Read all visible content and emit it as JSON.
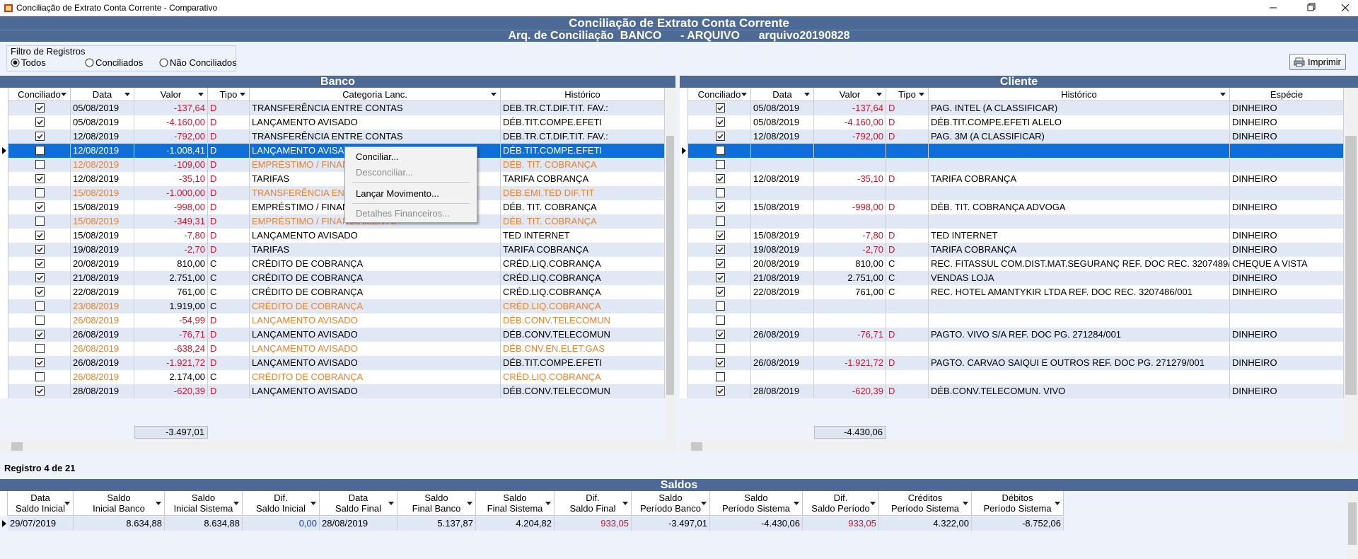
{
  "window": {
    "title": "Conciliação de Extrato Conta Corrente - Comparativo"
  },
  "header": {
    "title": "Conciliação de Extrato Conta Corrente",
    "subtitle": "Arq. de Conciliação  BANCO      - ARQUIVO      arquivo20190828"
  },
  "filter": {
    "label": "Filtro de Registros",
    "options": [
      "Todos",
      "Conciliados",
      "Não Conciliados"
    ],
    "selected": 0
  },
  "print_button": "Imprimir",
  "selected_row": 3,
  "banco": {
    "title": "Banco",
    "columns": [
      "Conciliado",
      "Data",
      "Valor",
      "Tipo",
      "Categoria Lanc.",
      "Histórico"
    ],
    "rows": [
      {
        "checked": true,
        "cells": [
          "05/08/2019",
          "-137,64",
          "D",
          "TRANSFERÊNCIA ENTRE CONTAS",
          "DEB.TR.CT.DIF.TIT. FAV.:"
        ]
      },
      {
        "checked": true,
        "cells": [
          "05/08/2019",
          "-4.160,00",
          "D",
          "LANÇAMENTO AVISADO",
          "DÉB.TIT.COMPE.EFETI"
        ]
      },
      {
        "checked": true,
        "cells": [
          "12/08/2019",
          "-792,00",
          "D",
          "TRANSFERÊNCIA ENTRE CONTAS",
          "DEB.TR.CT.DIF.TIT. FAV.:"
        ]
      },
      {
        "checked": false,
        "cells": [
          "12/08/2019",
          "-1.008,41",
          "D",
          "LANÇAMENTO AVISADO",
          "DÉB.TIT.COMPE.EFETI"
        ]
      },
      {
        "checked": false,
        "cells": [
          "12/08/2019",
          "-109,00",
          "D",
          "EMPRÉSTIMO / FINANCIAMENTO",
          "DÉB. TIT. COBRANÇA"
        ]
      },
      {
        "checked": true,
        "cells": [
          "12/08/2019",
          "-35,10",
          "D",
          "TARIFAS",
          "TARIFA COBRANÇA"
        ]
      },
      {
        "checked": false,
        "cells": [
          "15/08/2019",
          "-1.000,00",
          "D",
          "TRANSFERÊNCIA ENTRE CONTAS",
          "DEB.EMI.TED DIF.TIT"
        ]
      },
      {
        "checked": true,
        "cells": [
          "15/08/2019",
          "-998,00",
          "D",
          "EMPRÉSTIMO / FINANCIAMENTO",
          "DÉB. TIT. COBRANÇA"
        ]
      },
      {
        "checked": false,
        "cells": [
          "15/08/2019",
          "-349,31",
          "D",
          "EMPRÉSTIMO / FINANCIAMENTO",
          "DÉB. TIT. COBRANÇA"
        ]
      },
      {
        "checked": true,
        "cells": [
          "15/08/2019",
          "-7,80",
          "D",
          "LANÇAMENTO AVISADO",
          "TED INTERNET"
        ]
      },
      {
        "checked": true,
        "cells": [
          "19/08/2019",
          "-2,70",
          "D",
          "TARIFAS",
          "TARIFA COBRANÇA"
        ]
      },
      {
        "checked": true,
        "cells": [
          "20/08/2019",
          "810,00",
          "C",
          "CRÉDITO DE COBRANÇA",
          "CRÉD.LIQ.COBRANÇA"
        ]
      },
      {
        "checked": true,
        "cells": [
          "21/08/2019",
          "2.751,00",
          "C",
          "CRÉDITO DE COBRANÇA",
          "CRÉD.LIQ.COBRANÇA"
        ]
      },
      {
        "checked": true,
        "cells": [
          "22/08/2019",
          "761,00",
          "C",
          "CRÉDITO DE COBRANÇA",
          "CRÉD.LIQ.COBRANÇA"
        ]
      },
      {
        "checked": false,
        "cells": [
          "23/08/2019",
          "1.919,00",
          "C",
          "CRÉDITO DE COBRANÇA",
          "CRÉD.LIQ.COBRANÇA"
        ]
      },
      {
        "checked": false,
        "cells": [
          "26/08/2019",
          "-54,99",
          "D",
          "LANÇAMENTO AVISADO",
          "DÉB.CONV.TELECOMUN"
        ]
      },
      {
        "checked": true,
        "cells": [
          "26/08/2019",
          "-76,71",
          "D",
          "LANÇAMENTO AVISADO",
          "DÉB.CONV.TELECOMUN"
        ]
      },
      {
        "checked": false,
        "cells": [
          "26/08/2019",
          "-638,24",
          "D",
          "LANÇAMENTO AVISADO",
          "DÉB.CNV.EN.ELET.GAS"
        ]
      },
      {
        "checked": true,
        "cells": [
          "26/08/2019",
          "-1.921,72",
          "D",
          "LANÇAMENTO AVISADO",
          "DÉB.TIT.COMPE.EFETI"
        ]
      },
      {
        "checked": false,
        "cells": [
          "26/08/2019",
          "2.174,00",
          "C",
          "CRÉDITO DE COBRANÇA",
          "CRÉD.LIQ.COBRANÇA"
        ]
      },
      {
        "checked": true,
        "cells": [
          "28/08/2019",
          "-620,39",
          "D",
          "LANÇAMENTO AVISADO",
          "DÉB.CONV.TELECOMUN"
        ]
      }
    ],
    "total": "-3.497,01"
  },
  "cliente": {
    "title": "Cliente",
    "columns": [
      "Conciliado",
      "Data",
      "Valor",
      "Tipo",
      "Histórico",
      "Espécie"
    ],
    "rows": [
      {
        "checked": true,
        "cells": [
          "05/08/2019",
          "-137,64",
          "D",
          "PAG. INTEL (A CLASSIFICAR)",
          "DINHEIRO"
        ]
      },
      {
        "checked": true,
        "cells": [
          "05/08/2019",
          "-4.160,00",
          "D",
          "DÉB.TIT.COMPE.EFETI ALELO",
          "DINHEIRO"
        ]
      },
      {
        "checked": true,
        "cells": [
          "12/08/2019",
          "-792,00",
          "D",
          "PAG. 3M (A CLASSIFICAR)",
          "DINHEIRO"
        ]
      },
      {
        "checked": false
      },
      {
        "checked": false
      },
      {
        "checked": true,
        "cells": [
          "12/08/2019",
          "-35,10",
          "D",
          "TARIFA COBRANÇA",
          "DINHEIRO"
        ]
      },
      {
        "checked": false
      },
      {
        "checked": true,
        "cells": [
          "15/08/2019",
          "-998,00",
          "D",
          "DÉB. TIT. COBRANÇA ADVOGA",
          "DINHEIRO"
        ]
      },
      {
        "checked": false
      },
      {
        "checked": true,
        "cells": [
          "15/08/2019",
          "-7,80",
          "D",
          "TED INTERNET",
          "DINHEIRO"
        ]
      },
      {
        "checked": true,
        "cells": [
          "19/08/2019",
          "-2,70",
          "D",
          "TARIFA COBRANÇA",
          "DINHEIRO"
        ]
      },
      {
        "checked": true,
        "cells": [
          "20/08/2019",
          "810,00",
          "C",
          "REC. FITASSUL COM.DIST.MAT.SEGURANÇ REF. DOC REC. 3207489/",
          "CHEQUE A VISTA"
        ]
      },
      {
        "checked": true,
        "cells": [
          "21/08/2019",
          "2.751,00",
          "C",
          "VENDAS LOJA",
          "DINHEIRO"
        ]
      },
      {
        "checked": true,
        "cells": [
          "22/08/2019",
          "761,00",
          "C",
          "REC. HOTEL AMANTYKIR LTDA REF. DOC REC. 3207486/001",
          "DINHEIRO"
        ]
      },
      {
        "checked": false
      },
      {
        "checked": false
      },
      {
        "checked": true,
        "cells": [
          "26/08/2019",
          "-76,71",
          "D",
          "PAGTO. VIVO S/A REF. DOC PG. 271284/001",
          "DINHEIRO"
        ]
      },
      {
        "checked": false
      },
      {
        "checked": true,
        "cells": [
          "26/08/2019",
          "-1.921,72",
          "D",
          "PAGTO. CARVAO SAIQUI E OUTROS REF. DOC PG. 271279/001",
          "DINHEIRO"
        ]
      },
      {
        "checked": false
      },
      {
        "checked": true,
        "cells": [
          "28/08/2019",
          "-620,39",
          "D",
          "DÉB.CONV.TELECOMUN. VIVO",
          "DINHEIRO"
        ]
      }
    ],
    "total": "-4.430,06"
  },
  "context_menu": {
    "items": [
      {
        "label": "Conciliar...",
        "enabled": true
      },
      {
        "label": "Desconciliar...",
        "enabled": false
      },
      {
        "label": "Lançar Movimento...",
        "enabled": true
      },
      {
        "label": "Detalhes Financeiros...",
        "enabled": false
      }
    ]
  },
  "status": "Registro 4 de 21",
  "saldos": {
    "title": "Saldos",
    "columns": [
      [
        "Data",
        "Saldo Inicial"
      ],
      [
        "Saldo",
        "Inicial Banco"
      ],
      [
        "Saldo",
        "Inicial Sistema"
      ],
      [
        "Dif.",
        "Saldo Inicial"
      ],
      [
        "Data",
        "Saldo Final"
      ],
      [
        "Saldo",
        "Final Banco"
      ],
      [
        "Saldo",
        "Final Sistema"
      ],
      [
        "Dif.",
        "Saldo Final"
      ],
      [
        "Saldo",
        "Período Banco"
      ],
      [
        "Saldo",
        "Período Sistema"
      ],
      [
        "Dif.",
        "Saldo Período"
      ],
      [
        "Créditos",
        "Período Sistema"
      ],
      [
        "Débitos",
        "Período Sistema"
      ]
    ],
    "rows": [
      [
        "29/07/2019",
        "8.634,88",
        "8.634,88",
        "0,00",
        "28/08/2019",
        "5.137,87",
        "4.204,82",
        "933,05",
        "-3.497,01",
        "-4.430,06",
        "933,05",
        "4.322,00",
        "-8.752,06"
      ]
    ]
  }
}
